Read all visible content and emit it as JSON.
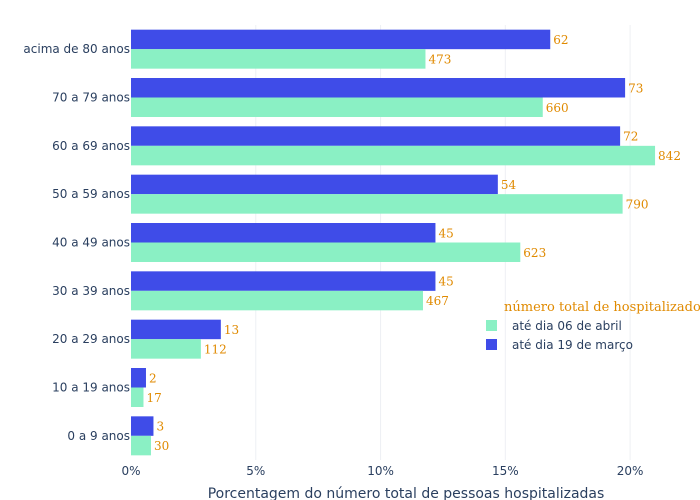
{
  "chart_data": {
    "type": "bar",
    "orientation": "horizontal",
    "categories": [
      "0 a 9 anos",
      "10 a 19 anos",
      "20 a 29 anos",
      "30 a 39 anos",
      "40 a 49 anos",
      "50 a 59 anos",
      "60 a 69 anos",
      "70 a 79 anos",
      "acima de 80 anos"
    ],
    "series": [
      {
        "name": "até dia 06 de abril",
        "color": "#8af0c4",
        "values": [
          0.8,
          0.5,
          2.8,
          11.7,
          15.6,
          19.7,
          21.0,
          16.5,
          11.8
        ],
        "labels": [
          "30",
          "17",
          "112",
          "467",
          "623",
          "790",
          "842",
          "660",
          "473"
        ]
      },
      {
        "name": "até dia 19 de março",
        "color": "#3f4ce8",
        "values": [
          0.9,
          0.6,
          3.6,
          12.2,
          12.2,
          14.7,
          19.6,
          19.8,
          16.8
        ],
        "labels": [
          "3",
          "2",
          "13",
          "45",
          "45",
          "54",
          "72",
          "73",
          "62"
        ]
      }
    ],
    "xlabel": "Porcentagem do número total de pessoas hospitalizadas",
    "ylabel": "",
    "xlim": [
      0,
      22.2
    ],
    "xticks": [
      0,
      5,
      10,
      15,
      20
    ],
    "xtick_labels": [
      "0%",
      "5%",
      "10%",
      "15%",
      "20%"
    ],
    "grid": true,
    "label_color": "#e08a00",
    "legend": {
      "title": "número total de hospitalizados",
      "placement": "right-middle",
      "items": [
        "até dia 06 de abril",
        "até dia 19 de março"
      ]
    }
  }
}
